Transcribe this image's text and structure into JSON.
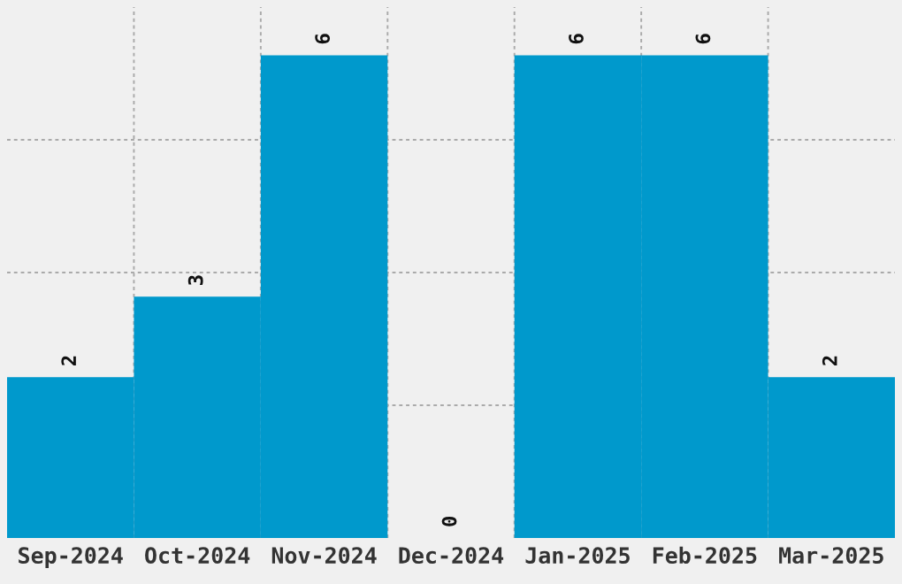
{
  "chart_data": {
    "type": "bar",
    "categories": [
      "Sep-2024",
      "Oct-2024",
      "Nov-2024",
      "Dec-2024",
      "Jan-2025",
      "Feb-2025",
      "Mar-2025"
    ],
    "values": [
      2,
      3,
      6,
      0,
      6,
      6,
      2
    ],
    "color": "#0099cc",
    "ylim": [
      0,
      6.6
    ],
    "yticks": [
      {
        "value": 1.65,
        "label": null
      },
      {
        "value": 3.3,
        "label": null
      },
      {
        "value": 4.95,
        "label": null
      }
    ],
    "data_labels": true,
    "grid": true
  }
}
